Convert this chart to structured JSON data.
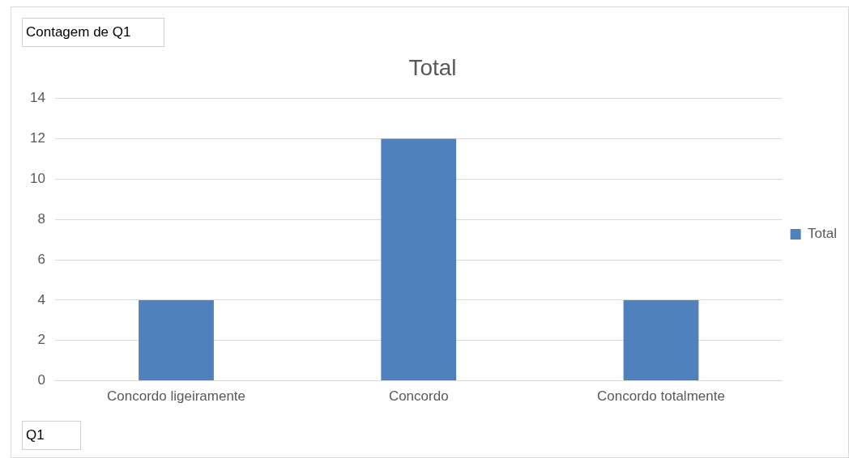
{
  "chart_data": {
    "type": "bar",
    "title": "Total",
    "categories": [
      "Concordo ligeiramente",
      "Concordo",
      "Concordo totalmente"
    ],
    "series": [
      {
        "name": "Total",
        "color": "#4f81bd",
        "values": [
          4,
          12,
          4
        ]
      }
    ],
    "ylim": [
      0,
      14
    ],
    "yticks": [
      0,
      2,
      4,
      6,
      8,
      10,
      12,
      14
    ],
    "grid": "y",
    "legend": "right",
    "annotations": [
      "Contagem de Q1",
      "Q1"
    ]
  }
}
